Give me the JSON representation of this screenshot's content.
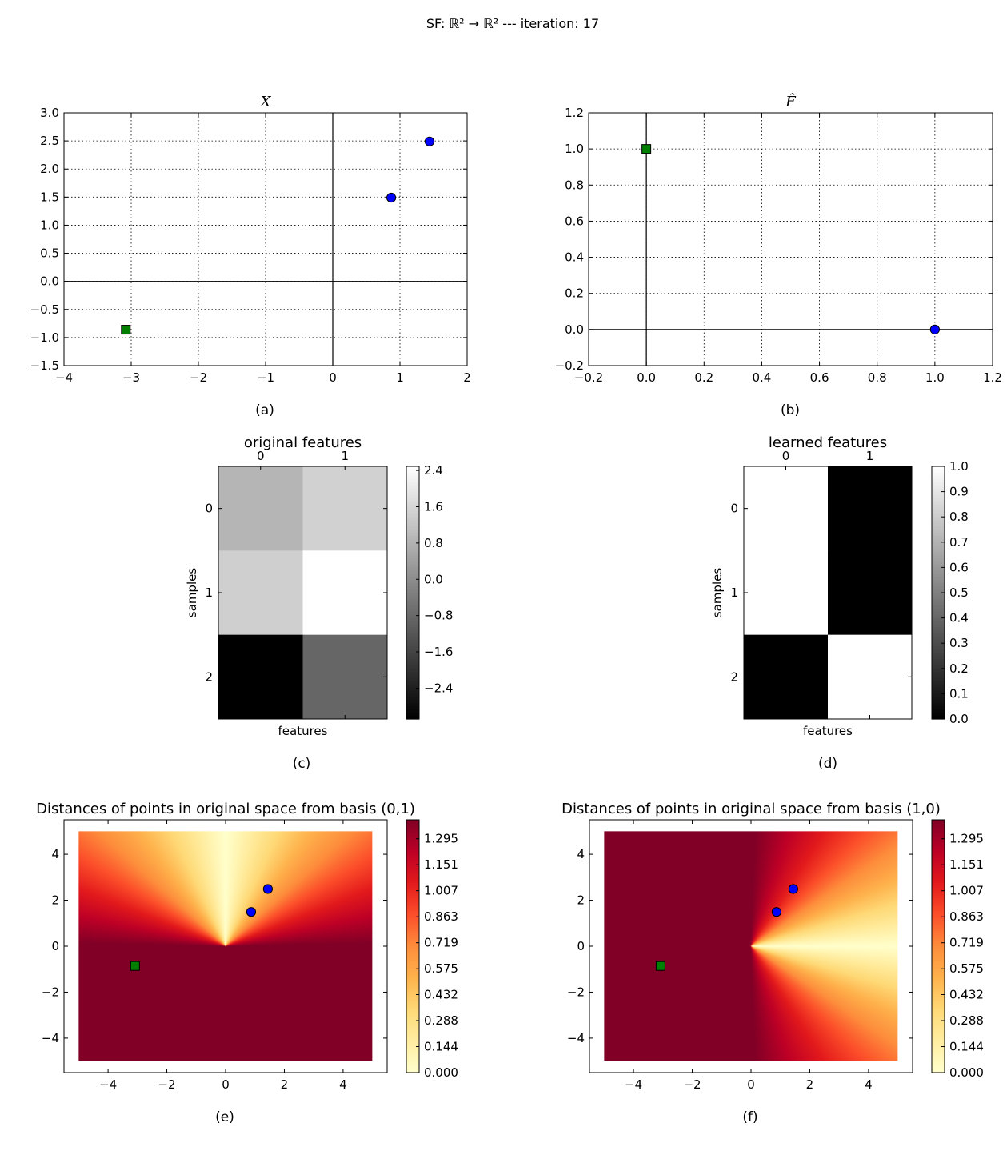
{
  "suptitle": "SF: ℝ² → ℝ²  ---  iteration: 17",
  "colors": {
    "circle_marker": "#0000ff",
    "square_marker": "#008000",
    "marker_edge": "#000000",
    "grid": "#000000"
  },
  "chart_data": [
    {
      "id": "a",
      "type": "scatter",
      "title": "X",
      "caption": "(a)",
      "xlim": [
        -4,
        2
      ],
      "ylim": [
        -1.5,
        3.0
      ],
      "xticks": [
        -4,
        -3,
        -2,
        -1,
        0,
        1,
        2
      ],
      "yticks": [
        -1.5,
        -1.0,
        -0.5,
        0.0,
        0.5,
        1.0,
        1.5,
        2.0,
        2.5,
        3.0
      ],
      "xtick_labels": [
        "−4",
        "−3",
        "−2",
        "−1",
        "0",
        "1",
        "2"
      ],
      "ytick_labels": [
        "−1.5",
        "−1.0",
        "−0.5",
        "0.0",
        "0.5",
        "1.0",
        "1.5",
        "2.0",
        "2.5",
        "3.0"
      ],
      "grid": true,
      "points": [
        {
          "x": 0.87,
          "y": 1.49,
          "marker": "circle"
        },
        {
          "x": 1.44,
          "y": 2.49,
          "marker": "circle"
        },
        {
          "x": -3.08,
          "y": -0.86,
          "marker": "square"
        }
      ]
    },
    {
      "id": "b",
      "type": "scatter",
      "title": "F̂",
      "caption": "(b)",
      "xlim": [
        -0.2,
        1.2
      ],
      "ylim": [
        -0.2,
        1.2
      ],
      "xticks": [
        -0.2,
        0.0,
        0.2,
        0.4,
        0.6,
        0.8,
        1.0,
        1.2
      ],
      "yticks": [
        -0.2,
        0.0,
        0.2,
        0.4,
        0.6,
        0.8,
        1.0,
        1.2
      ],
      "xtick_labels": [
        "−0.2",
        "0.0",
        "0.2",
        "0.4",
        "0.6",
        "0.8",
        "1.0",
        "1.2"
      ],
      "ytick_labels": [
        "−0.2",
        "0.0",
        "0.2",
        "0.4",
        "0.6",
        "0.8",
        "1.0",
        "1.2"
      ],
      "grid": true,
      "points": [
        {
          "x": 1.0,
          "y": 0.0,
          "marker": "circle"
        },
        {
          "x": 0.0,
          "y": 1.0,
          "marker": "square"
        }
      ]
    },
    {
      "id": "c",
      "type": "heatmap",
      "title": "original features",
      "caption": "(c)",
      "xlabel": "features",
      "ylabel": "samples",
      "col_labels": [
        "0",
        "1"
      ],
      "row_labels": [
        "0",
        "1",
        "2"
      ],
      "values": [
        [
          0.87,
          1.49
        ],
        [
          1.44,
          2.49
        ],
        [
          -3.08,
          -0.86
        ]
      ],
      "vmin": -3.08,
      "vmax": 2.49,
      "colormap": "gray",
      "colorbar_ticks": [
        -2.4,
        -1.6,
        -0.8,
        0.0,
        0.8,
        1.6,
        2.4
      ],
      "colorbar_labels": [
        "−2.4",
        "−1.6",
        "−0.8",
        "0.0",
        "0.8",
        "1.6",
        "2.4"
      ]
    },
    {
      "id": "d",
      "type": "heatmap",
      "title": "learned features",
      "caption": "(d)",
      "xlabel": "features",
      "ylabel": "samples",
      "col_labels": [
        "0",
        "1"
      ],
      "row_labels": [
        "0",
        "1",
        "2"
      ],
      "values": [
        [
          1.0,
          0.0
        ],
        [
          1.0,
          0.0
        ],
        [
          0.0,
          1.0
        ]
      ],
      "vmin": 0.0,
      "vmax": 1.0,
      "colormap": "gray",
      "colorbar_ticks": [
        0.0,
        0.1,
        0.2,
        0.3,
        0.4,
        0.5,
        0.6,
        0.7,
        0.8,
        0.9,
        1.0
      ],
      "colorbar_labels": [
        "0.0",
        "0.1",
        "0.2",
        "0.3",
        "0.4",
        "0.5",
        "0.6",
        "0.7",
        "0.8",
        "0.9",
        "1.0"
      ]
    },
    {
      "id": "e",
      "type": "heatmap",
      "title": "Distances of points in original space from basis (0,1)",
      "caption": "(e)",
      "basis": [
        0,
        1
      ],
      "xlim": [
        -5.5,
        5.5
      ],
      "ylim": [
        -5.5,
        5.5
      ],
      "field_extent": [
        -5,
        5
      ],
      "xticks": [
        -4,
        -2,
        0,
        2,
        4
      ],
      "yticks": [
        -4,
        -2,
        0,
        2,
        4
      ],
      "xtick_labels": [
        "−4",
        "−2",
        "0",
        "2",
        "4"
      ],
      "ytick_labels": [
        "−4",
        "−2",
        "0",
        "2",
        "4"
      ],
      "vmin": 0.0,
      "vmax": 1.4,
      "colormap": "YlOrRd",
      "colorbar_ticks": [
        0.0,
        0.144,
        0.288,
        0.432,
        0.575,
        0.719,
        0.863,
        1.007,
        1.151,
        1.295
      ],
      "colorbar_labels": [
        "0.000",
        "0.144",
        "0.288",
        "0.432",
        "0.575",
        "0.719",
        "0.863",
        "1.007",
        "1.151",
        "1.295"
      ],
      "points": [
        {
          "x": 0.87,
          "y": 1.49,
          "marker": "circle"
        },
        {
          "x": 1.44,
          "y": 2.49,
          "marker": "circle"
        },
        {
          "x": -3.08,
          "y": -0.86,
          "marker": "square"
        }
      ]
    },
    {
      "id": "f",
      "type": "heatmap",
      "title": "Distances of points in original space from basis (1,0)",
      "caption": "(f)",
      "basis": [
        1,
        0
      ],
      "xlim": [
        -5.5,
        5.5
      ],
      "ylim": [
        -5.5,
        5.5
      ],
      "field_extent": [
        -5,
        5
      ],
      "xticks": [
        -4,
        -2,
        0,
        2,
        4
      ],
      "yticks": [
        -4,
        -2,
        0,
        2,
        4
      ],
      "xtick_labels": [
        "−4",
        "−2",
        "0",
        "2",
        "4"
      ],
      "ytick_labels": [
        "−4",
        "−2",
        "0",
        "2",
        "4"
      ],
      "vmin": 0.0,
      "vmax": 1.4,
      "colormap": "YlOrRd",
      "colorbar_ticks": [
        0.0,
        0.144,
        0.288,
        0.432,
        0.575,
        0.719,
        0.863,
        1.007,
        1.151,
        1.295
      ],
      "colorbar_labels": [
        "0.000",
        "0.144",
        "0.288",
        "0.432",
        "0.575",
        "0.719",
        "0.863",
        "1.007",
        "1.151",
        "1.295"
      ],
      "points": [
        {
          "x": 0.87,
          "y": 1.49,
          "marker": "circle"
        },
        {
          "x": 1.44,
          "y": 2.49,
          "marker": "circle"
        },
        {
          "x": -3.08,
          "y": -0.86,
          "marker": "square"
        }
      ]
    }
  ]
}
